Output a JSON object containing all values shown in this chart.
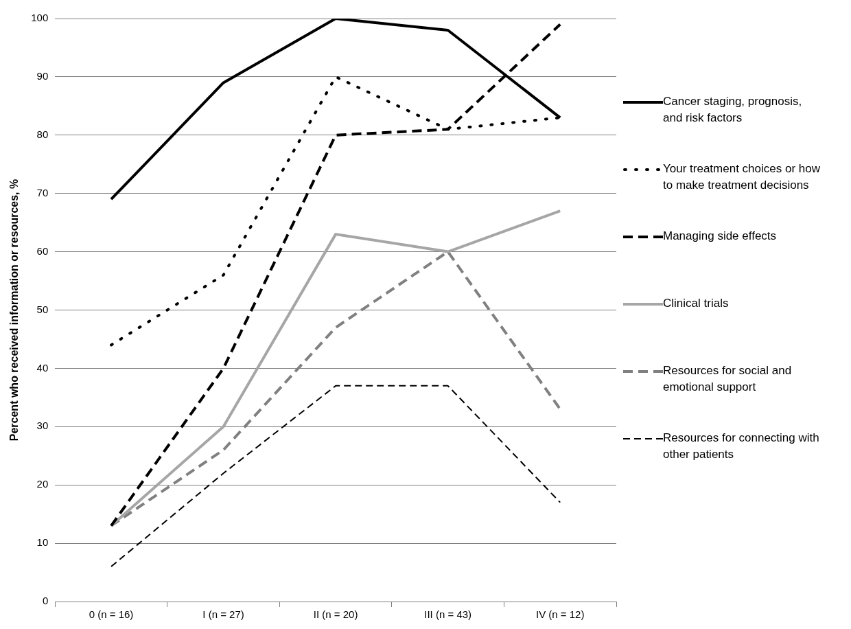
{
  "chart_data": {
    "type": "line",
    "ylabel": "Percent who received information or resources, %",
    "categories": [
      "0 (n = 16)",
      "I (n = 27)",
      "II (n = 20)",
      "III (n = 43)",
      "IV (n = 12)"
    ],
    "ylim": [
      0,
      100
    ],
    "yticks": [
      0,
      10,
      20,
      30,
      40,
      50,
      60,
      70,
      80,
      90,
      100
    ],
    "grid": "y",
    "legend": "right",
    "marker": "none",
    "series": [
      {
        "name": "Cancer staging, prognosis, and risk factors",
        "color": "#000000",
        "line_style": "solid",
        "values": [
          69,
          89,
          100,
          98,
          83
        ]
      },
      {
        "name": "Your treatment choices or how to make treatment decisions",
        "color": "#000000",
        "line_style": "dotted",
        "values": [
          44,
          56,
          90,
          81,
          83
        ]
      },
      {
        "name": "Managing side effects",
        "color": "#000000",
        "line_style": "dashed",
        "values": [
          13,
          40,
          80,
          81,
          99
        ]
      },
      {
        "name": "Clinical trials",
        "color": "#a6a6a6",
        "line_style": "solid",
        "values": [
          13,
          30,
          63,
          60,
          67
        ]
      },
      {
        "name": "Resources for social and emotional support",
        "color": "#808080",
        "line_style": "dashed",
        "values": [
          13,
          26,
          47,
          60,
          33
        ]
      },
      {
        "name": "Resources for connecting with other patients",
        "color": "#000000",
        "line_style": "dashed",
        "values": [
          6,
          22,
          37,
          37,
          17
        ]
      }
    ]
  }
}
